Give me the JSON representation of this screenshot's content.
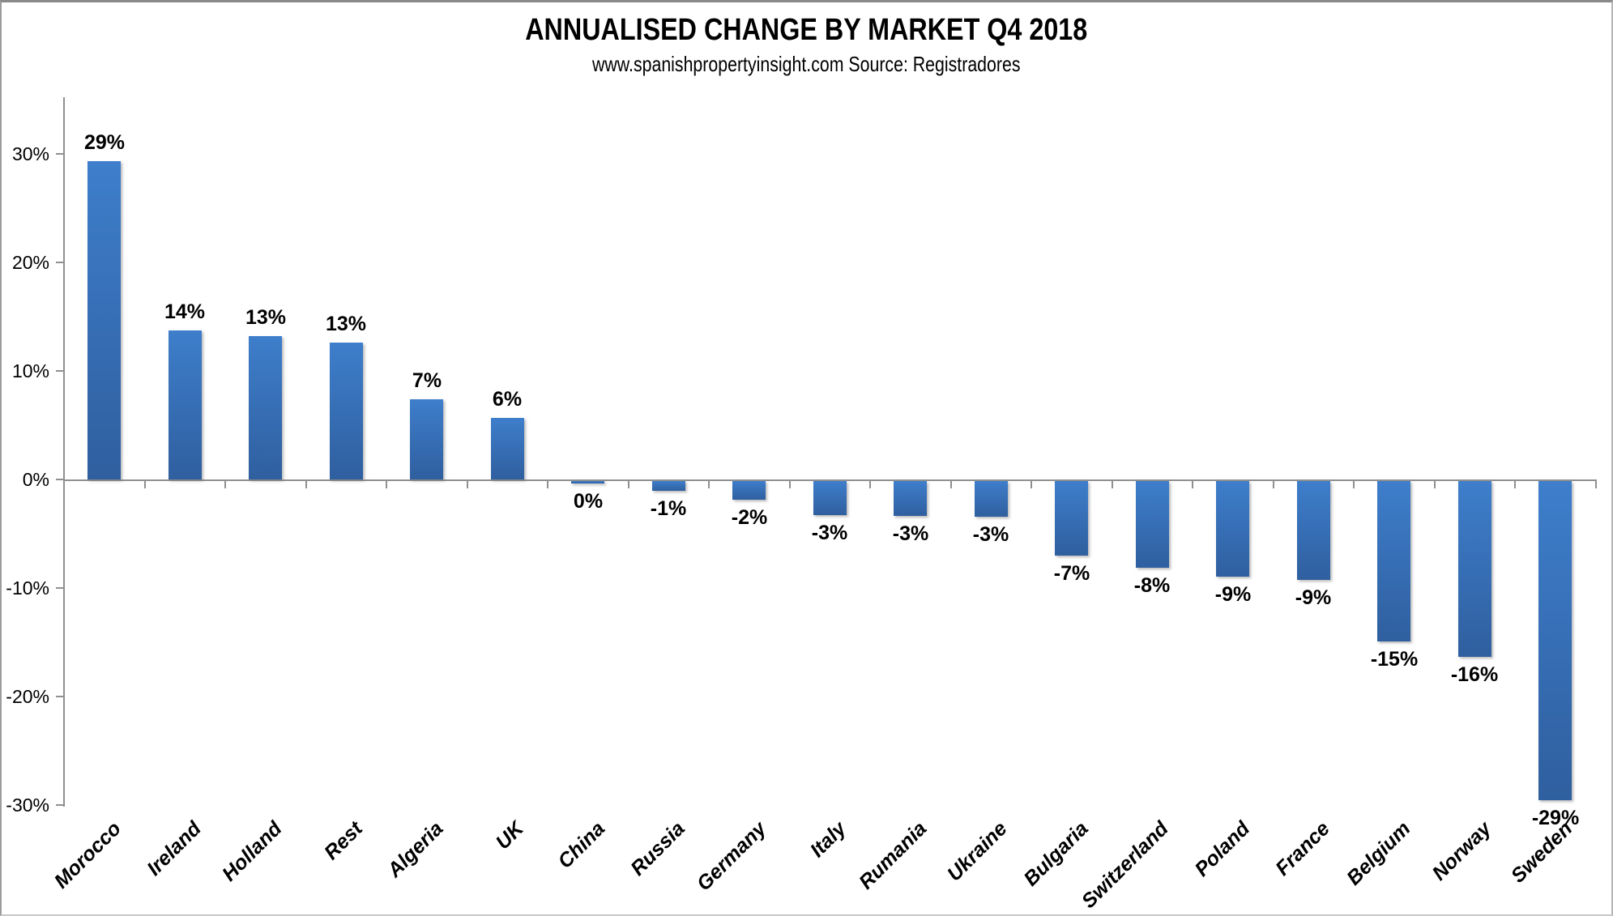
{
  "header": {
    "title": "ANNUALISED CHANGE BY MARKET Q4 2018",
    "subtitle": "www.spanishpropertyinsight.com Source: Registradores"
  },
  "chart_data": {
    "type": "bar",
    "title": "ANNUALISED CHANGE BY MARKET Q4 2018",
    "subtitle": "www.spanishpropertyinsight.com Source: Registradores",
    "xlabel": "",
    "ylabel": "",
    "grid": false,
    "legend": false,
    "categories": [
      "Morocco",
      "Ireland",
      "Holland",
      "Rest",
      "Algeria",
      "UK",
      "China",
      "Russia",
      "Germany",
      "Italy",
      "Rumania",
      "Ukraine",
      "Bulgaria",
      "Switzerland",
      "Poland",
      "France",
      "Belgium",
      "Norway",
      "Sweden"
    ],
    "values": [
      29,
      14,
      13,
      13,
      7,
      6,
      0,
      -1,
      -2,
      -3,
      -3,
      -3,
      -7,
      -8,
      -9,
      -9,
      -15,
      -16,
      -29
    ],
    "values_precise": [
      29.3,
      13.7,
      13.2,
      12.6,
      7.4,
      5.7,
      -0.2,
      -0.9,
      -1.7,
      -3.1,
      -3.2,
      -3.3,
      -6.9,
      -8.0,
      -8.8,
      -9.1,
      -14.8,
      -16.2,
      -29.4
    ],
    "data_labels": [
      "29%",
      "14%",
      "13%",
      "13%",
      "7%",
      "6%",
      "0%",
      "-1%",
      "-2%",
      "-3%",
      "-3%",
      "-3%",
      "-7%",
      "-8%",
      "-9%",
      "-9%",
      "-15%",
      "-16%",
      "-29%"
    ],
    "y_ticks": [
      {
        "label": "30%",
        "value": 30
      },
      {
        "label": "20%",
        "value": 20
      },
      {
        "label": "10%",
        "value": 10
      },
      {
        "label": "0%",
        "value": 0
      },
      {
        "label": "-10%",
        "value": -10
      },
      {
        "label": "-20%",
        "value": -20
      },
      {
        "label": "-30%",
        "value": -30
      }
    ],
    "ylim": [
      -30,
      35.2
    ],
    "colors": {
      "bar_gradient_top": "#3e7ecb",
      "bar_gradient_bottom": "#2f5f9f",
      "axis": "#909090",
      "text": "#000000",
      "background": "#ffffff"
    }
  }
}
